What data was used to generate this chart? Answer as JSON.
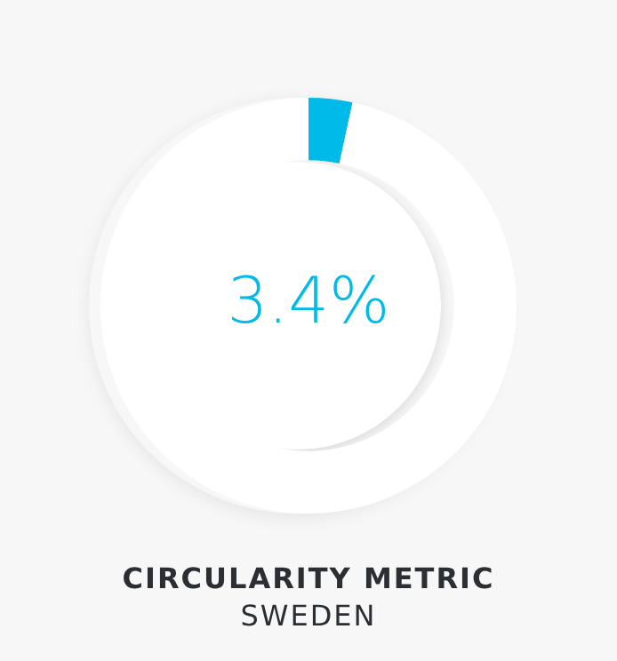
{
  "chart_data": {
    "type": "donut",
    "title": "CIRCULARITY METRIC",
    "subtitle": "SWEDEN",
    "categories": [
      null,
      null
    ],
    "values": [
      3.4,
      96.6
    ],
    "colors": [
      "#00bbea",
      "#ffffff"
    ],
    "value_labels": [
      "3.4%",
      null
    ],
    "legend": false
  }
}
